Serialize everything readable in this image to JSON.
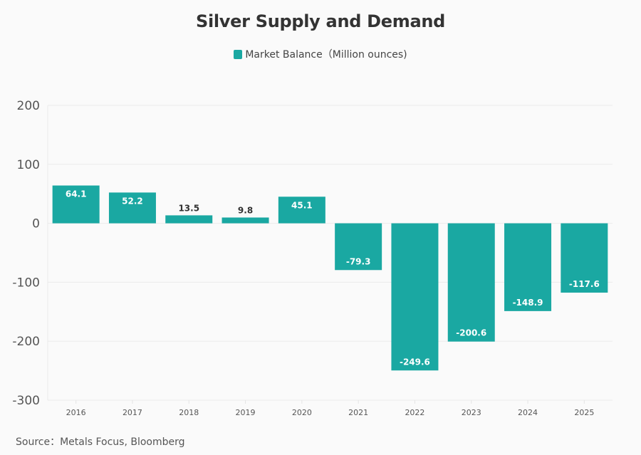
{
  "chart_data": {
    "type": "bar",
    "title": "Silver Supply and Demand",
    "legend": [
      {
        "name": "Market Balance（Million ounces)",
        "color": "#1aa8a2"
      }
    ],
    "legend_position": "top-center",
    "categories": [
      "2016",
      "2017",
      "2018",
      "2019",
      "2020",
      "2021",
      "2022",
      "2023",
      "2024",
      "2025"
    ],
    "series": [
      {
        "name": "Market Balance（Million ounces)",
        "values": [
          64.1,
          52.2,
          13.5,
          9.8,
          45.1,
          -79.3,
          -249.6,
          -200.6,
          -148.9,
          -117.6
        ]
      }
    ],
    "data_labels": [
      "64.1",
      "52.2",
      "13.5",
      "9.8",
      "45.1",
      "-79.3",
      "-249.6",
      "-200.6",
      "-148.9",
      "-117.6"
    ],
    "xlabel": "",
    "ylabel": "",
    "ylim": [
      -300,
      200
    ],
    "yticks": [
      200,
      100,
      0,
      -100,
      -200,
      -300
    ],
    "grid": true,
    "bar_color": "#1aa8a2",
    "source": "Source：Metals Focus, Bloomberg"
  }
}
